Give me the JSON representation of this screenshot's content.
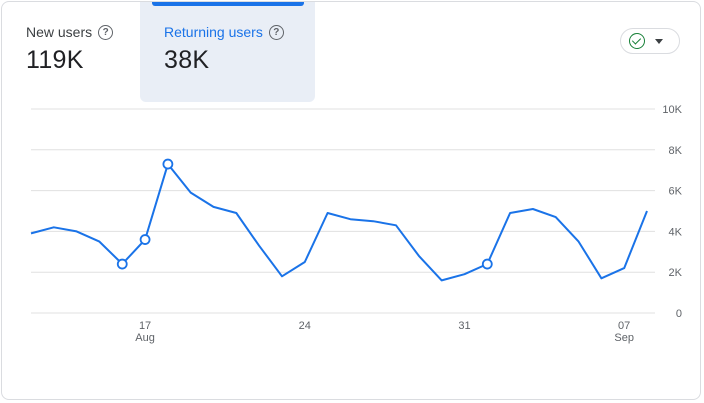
{
  "metrics": {
    "new_users": {
      "label": "New users",
      "value": "119K"
    },
    "returning_users": {
      "label": "Returning users",
      "value": "38K"
    }
  },
  "colors": {
    "line": "#1a73e8",
    "grid": "#e0e0e0",
    "selected_bg": "#e9eef6"
  },
  "status_icon": "check-circle-icon",
  "chart_data": {
    "type": "line",
    "series": [
      {
        "values": [
          3.9,
          4.2,
          4.0,
          3.5,
          2.4,
          3.6,
          7.3,
          5.9,
          5.2,
          4.9,
          3.3,
          1.8,
          2.5,
          4.9,
          4.6,
          4.5,
          4.3,
          2.8,
          1.6,
          1.9,
          2.4,
          4.9,
          5.1,
          4.7,
          3.5,
          1.7,
          2.2,
          5.0
        ],
        "markers": [
          4,
          5,
          6,
          20
        ]
      }
    ],
    "y_unit": "thousands",
    "ylim": [
      0,
      10
    ],
    "y_ticks": [
      "0",
      "2K",
      "4K",
      "6K",
      "8K",
      "10K"
    ],
    "x_ticks": [
      {
        "index": 5,
        "day": "17",
        "month": "Aug"
      },
      {
        "index": 12,
        "day": "24",
        "month": ""
      },
      {
        "index": 19,
        "day": "31",
        "month": ""
      },
      {
        "index": 26,
        "day": "07",
        "month": "Sep"
      }
    ],
    "grid": true
  }
}
